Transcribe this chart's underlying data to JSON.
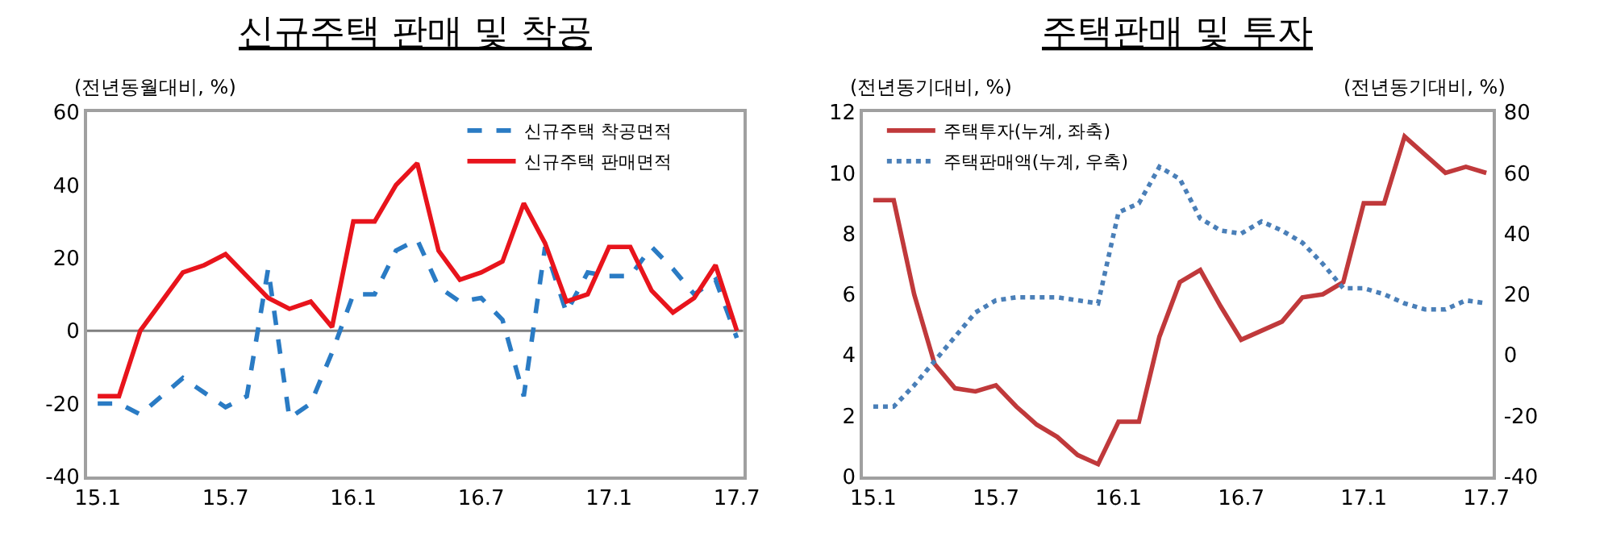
{
  "chart_data": [
    {
      "type": "line",
      "title": "신규주택 판매 및 착공",
      "ylabel": "(전년동월대비, %)",
      "categories": [
        "15.1",
        null,
        null,
        null,
        null,
        null,
        "15.7",
        null,
        null,
        null,
        null,
        null,
        "16.1",
        null,
        null,
        null,
        null,
        null,
        "16.7",
        null,
        null,
        null,
        null,
        null,
        "17.1",
        null,
        null,
        null,
        null,
        null,
        "17.7"
      ],
      "ylim": [
        -40,
        60
      ],
      "yticks": [
        -40,
        -20,
        0,
        20,
        40,
        60
      ],
      "series": [
        {
          "name": "신규주택 착공면적",
          "color": "#2a7bc4",
          "line_style": "dashed",
          "values": [
            -20,
            -20,
            -23,
            -18,
            -13,
            -17,
            -21,
            -18,
            17,
            -24,
            -20,
            -6,
            10,
            10,
            22,
            25,
            12,
            8,
            9,
            3,
            -18,
            23,
            5,
            16,
            15,
            15,
            23,
            17,
            10,
            14,
            -2
          ]
        },
        {
          "name": "신규주택 판매면적",
          "color": "#e8141c",
          "line_style": "solid",
          "values": [
            -18,
            -18,
            0,
            8,
            16,
            18,
            21,
            15,
            9,
            6,
            8,
            1,
            30,
            30,
            40,
            46,
            22,
            14,
            16,
            19,
            35,
            24,
            8,
            10,
            23,
            23,
            11,
            5,
            9,
            18,
            0
          ]
        }
      ],
      "ref_lines": [
        {
          "axis": "y",
          "value": 0,
          "color": "#808080"
        }
      ],
      "legend": "top right",
      "grid": false
    },
    {
      "type": "line",
      "title": "주택판매 및 투자",
      "ylabel": "(전년동기대비, %)",
      "y2label": "(전년동기대비, %)",
      "categories": [
        "15.1",
        null,
        null,
        null,
        null,
        null,
        "15.7",
        null,
        null,
        null,
        null,
        null,
        "16.1",
        null,
        null,
        null,
        null,
        null,
        "16.7",
        null,
        null,
        null,
        null,
        null,
        "17.1",
        null,
        null,
        null,
        null,
        null,
        "17.7"
      ],
      "ylim": [
        0,
        12
      ],
      "yticks": [
        0,
        2,
        4,
        6,
        8,
        10,
        12
      ],
      "y2lim": [
        -40,
        80
      ],
      "y2ticks": [
        -40,
        -20,
        0,
        20,
        40,
        60,
        80
      ],
      "series": [
        {
          "name": "주택투자(누계, 좌축)",
          "color": "#c0393b",
          "line_style": "solid",
          "values": [
            9.1,
            9.1,
            6.0,
            3.7,
            2.9,
            2.8,
            3.0,
            2.3,
            1.7,
            1.3,
            0.7,
            0.4,
            1.8,
            1.8,
            4.6,
            6.4,
            6.8,
            5.6,
            4.5,
            4.8,
            5.1,
            5.9,
            6.0,
            6.4,
            9.0,
            9.0,
            11.2,
            10.6,
            10.0,
            10.2,
            10.0
          ]
        },
        {
          "name": "주택판매액(누계, 우축)",
          "color": "#4a7fb8",
          "line_style": "dotted",
          "axis": "y2",
          "values": [
            -17,
            -17,
            -10,
            -2,
            6,
            14,
            18,
            19,
            19,
            19,
            18,
            17,
            47,
            50,
            62,
            58,
            45,
            41,
            40,
            44,
            41,
            37,
            30,
            22,
            22,
            20,
            17,
            15,
            15,
            18,
            17
          ]
        }
      ],
      "legend": "top left",
      "grid": false
    }
  ]
}
